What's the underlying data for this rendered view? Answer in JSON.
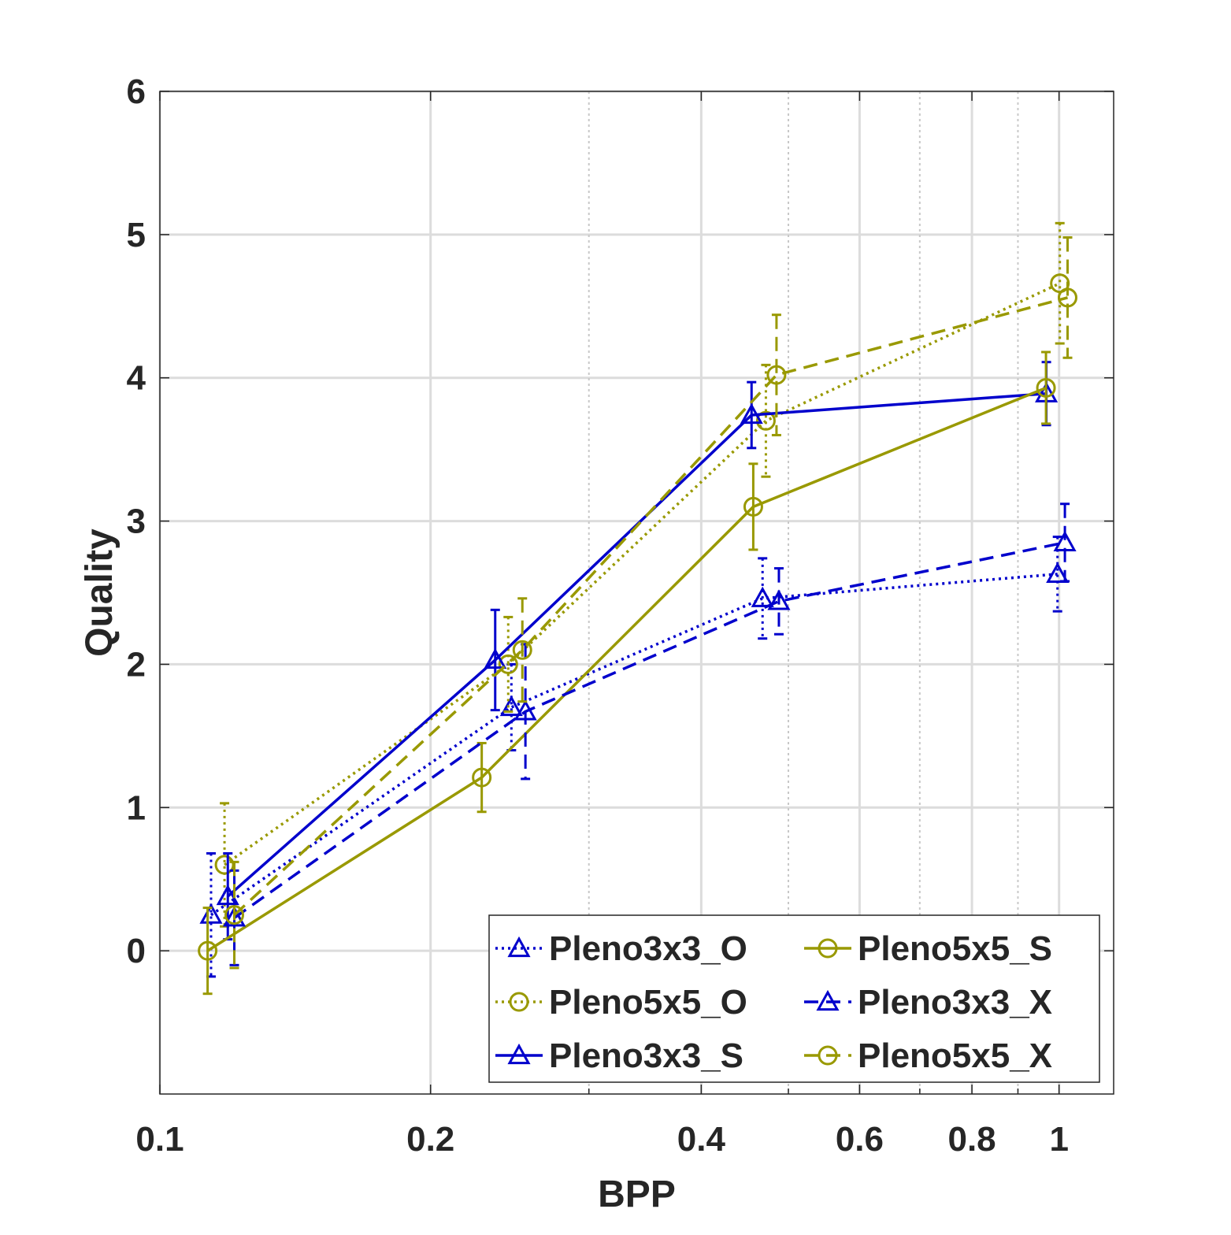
{
  "chart_data": {
    "type": "line",
    "title": "",
    "xlabel": "BPP",
    "ylabel": "Quality",
    "xscale": "log",
    "xlim": [
      0.1,
      1.15
    ],
    "ylim": [
      -1,
      6
    ],
    "xticks": [
      0.1,
      0.2,
      0.4,
      0.6,
      0.8,
      1
    ],
    "xtick_labels": [
      "0.1",
      "0.2",
      "0.4",
      "0.6",
      "0.8",
      "1"
    ],
    "yticks": [
      0,
      1,
      2,
      3,
      4,
      5,
      6
    ],
    "ytick_labels": [
      "0",
      "1",
      "2",
      "3",
      "4",
      "5",
      "6"
    ],
    "x_minor_grid": [
      0.3,
      0.5,
      0.7,
      0.9
    ],
    "grid": true,
    "legend_position": "bottom-right",
    "legend_columns": 2,
    "colors": {
      "blue": "#0000CC",
      "olive": "#999900"
    },
    "series": [
      {
        "name": "Pleno3x3_O",
        "color": "#0000CC",
        "line_style": "dotted",
        "marker": "triangle",
        "points": [
          {
            "x": 0.114,
            "y": 0.25,
            "err": 0.43
          },
          {
            "x": 0.246,
            "y": 1.7,
            "err": 0.3
          },
          {
            "x": 0.468,
            "y": 2.46,
            "err": 0.28
          },
          {
            "x": 0.996,
            "y": 2.63,
            "err": 0.26
          }
        ]
      },
      {
        "name": "Pleno5x5_O",
        "color": "#999900",
        "line_style": "dotted",
        "marker": "circle",
        "points": [
          {
            "x": 0.118,
            "y": 0.6,
            "err": 0.43
          },
          {
            "x": 0.244,
            "y": 2.0,
            "err": 0.33
          },
          {
            "x": 0.472,
            "y": 3.7,
            "err": 0.39
          },
          {
            "x": 1.002,
            "y": 4.66,
            "err": 0.42
          }
        ]
      },
      {
        "name": "Pleno3x3_S",
        "color": "#0000CC",
        "line_style": "solid",
        "marker": "triangle",
        "points": [
          {
            "x": 0.119,
            "y": 0.38,
            "err": 0.3
          },
          {
            "x": 0.236,
            "y": 2.03,
            "err": 0.35
          },
          {
            "x": 0.455,
            "y": 3.74,
            "err": 0.23
          },
          {
            "x": 0.968,
            "y": 3.89,
            "err": 0.22
          }
        ]
      },
      {
        "name": "Pleno5x5_S",
        "color": "#999900",
        "line_style": "solid",
        "marker": "circle",
        "points": [
          {
            "x": 0.113,
            "y": 0.0,
            "err": 0.3
          },
          {
            "x": 0.228,
            "y": 1.21,
            "err": 0.24
          },
          {
            "x": 0.457,
            "y": 3.1,
            "err": 0.3
          },
          {
            "x": 0.967,
            "y": 3.93,
            "err": 0.25
          }
        ]
      },
      {
        "name": "Pleno3x3_X",
        "color": "#0000CC",
        "line_style": "dashed",
        "marker": "triangle",
        "points": [
          {
            "x": 0.121,
            "y": 0.23,
            "err": 0.33
          },
          {
            "x": 0.255,
            "y": 1.67,
            "err": 0.47
          },
          {
            "x": 0.488,
            "y": 2.44,
            "err": 0.23
          },
          {
            "x": 1.015,
            "y": 2.85,
            "err": 0.27
          }
        ]
      },
      {
        "name": "Pleno5x5_X",
        "color": "#999900",
        "line_style": "dashed",
        "marker": "circle",
        "points": [
          {
            "x": 0.121,
            "y": 0.25,
            "err": 0.37
          },
          {
            "x": 0.253,
            "y": 2.1,
            "err": 0.36
          },
          {
            "x": 0.485,
            "y": 4.02,
            "err": 0.42
          },
          {
            "x": 1.022,
            "y": 4.56,
            "err": 0.42
          }
        ]
      }
    ]
  }
}
